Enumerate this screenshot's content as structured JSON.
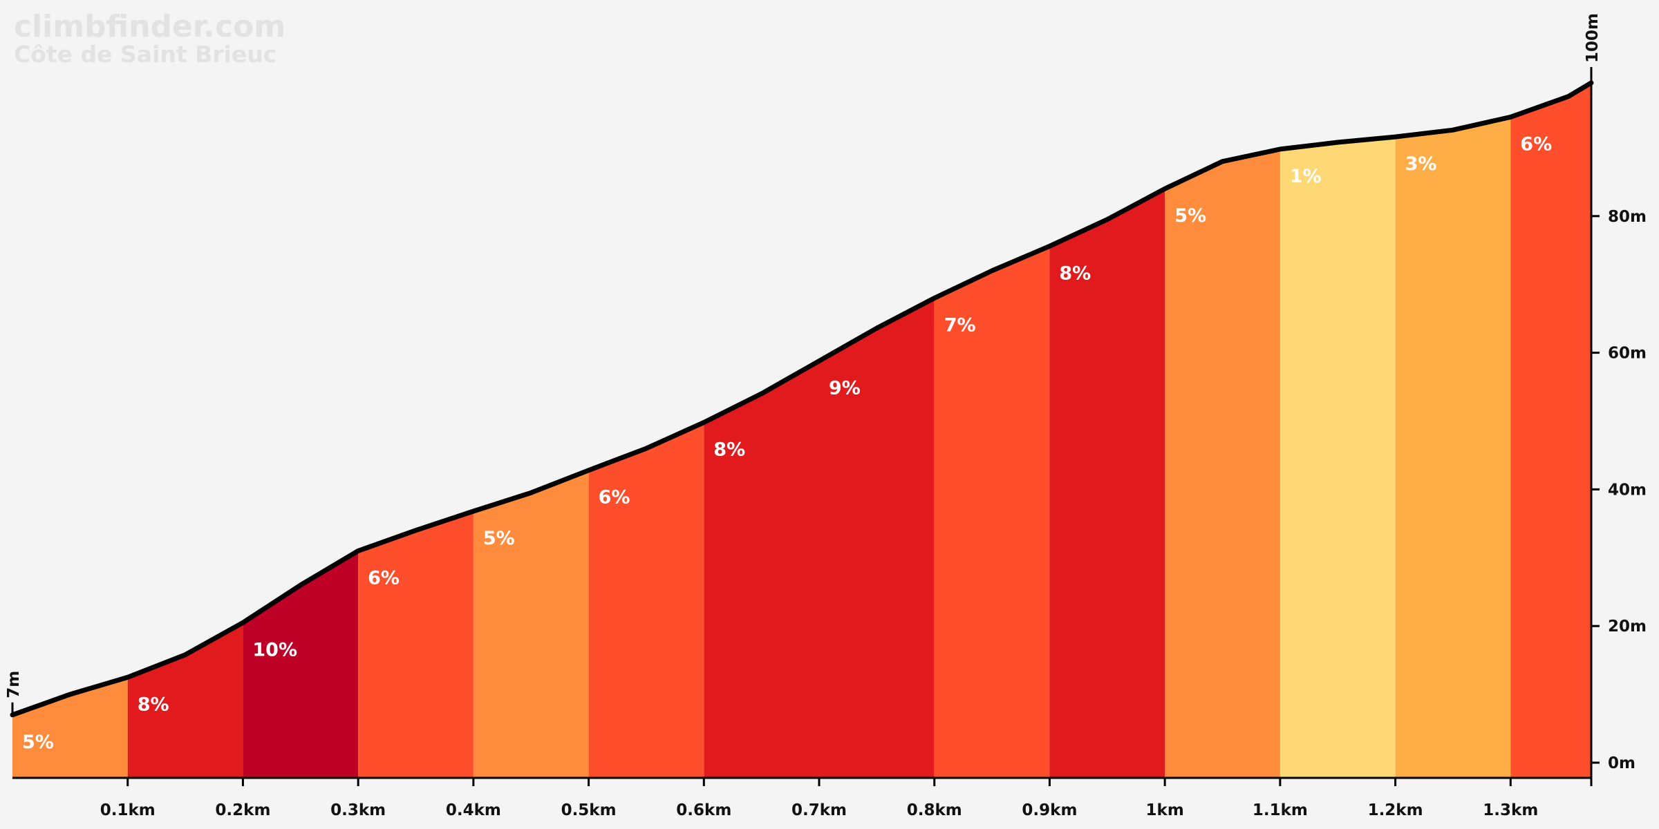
{
  "watermark": {
    "site": "climbfinder.com",
    "climb_name": "Côte de Saint Brieuc"
  },
  "chart_data": {
    "type": "area",
    "xlabel": "",
    "ylabel": "",
    "xlim": [
      0,
      1.37
    ],
    "ylim": [
      0,
      100
    ],
    "x_ticks": [
      {
        "x": 0.1,
        "label": "0.1km"
      },
      {
        "x": 0.2,
        "label": "0.2km"
      },
      {
        "x": 0.3,
        "label": "0.3km"
      },
      {
        "x": 0.4,
        "label": "0.4km"
      },
      {
        "x": 0.5,
        "label": "0.5km"
      },
      {
        "x": 0.6,
        "label": "0.6km"
      },
      {
        "x": 0.7,
        "label": "0.7km"
      },
      {
        "x": 0.8,
        "label": "0.8km"
      },
      {
        "x": 0.9,
        "label": "0.9km"
      },
      {
        "x": 1.0,
        "label": "1km"
      },
      {
        "x": 1.1,
        "label": "1.1km"
      },
      {
        "x": 1.2,
        "label": "1.2km"
      },
      {
        "x": 1.3,
        "label": "1.3km"
      }
    ],
    "y_ticks": [
      {
        "y": 0,
        "label": "0m"
      },
      {
        "y": 20,
        "label": "20m"
      },
      {
        "y": 40,
        "label": "40m"
      },
      {
        "y": 60,
        "label": "60m"
      },
      {
        "y": 80,
        "label": "80m"
      }
    ],
    "start_elevation": {
      "value": 7,
      "label": "7m"
    },
    "end_elevation": {
      "value": 100,
      "label": "100m"
    },
    "profile": [
      {
        "x": 0.0,
        "y": 7
      },
      {
        "x": 0.05,
        "y": 10
      },
      {
        "x": 0.1,
        "y": 12.5
      },
      {
        "x": 0.15,
        "y": 15.8
      },
      {
        "x": 0.2,
        "y": 20.5
      },
      {
        "x": 0.25,
        "y": 26
      },
      {
        "x": 0.3,
        "y": 31
      },
      {
        "x": 0.35,
        "y": 34
      },
      {
        "x": 0.4,
        "y": 36.8
      },
      {
        "x": 0.45,
        "y": 39.5
      },
      {
        "x": 0.5,
        "y": 42.8
      },
      {
        "x": 0.55,
        "y": 46
      },
      {
        "x": 0.6,
        "y": 49.8
      },
      {
        "x": 0.65,
        "y": 54
      },
      {
        "x": 0.7,
        "y": 58.8
      },
      {
        "x": 0.75,
        "y": 63.6
      },
      {
        "x": 0.8,
        "y": 68
      },
      {
        "x": 0.85,
        "y": 72
      },
      {
        "x": 0.9,
        "y": 75.6
      },
      {
        "x": 0.95,
        "y": 79.5
      },
      {
        "x": 1.0,
        "y": 84
      },
      {
        "x": 1.05,
        "y": 88
      },
      {
        "x": 1.1,
        "y": 89.8
      },
      {
        "x": 1.15,
        "y": 90.8
      },
      {
        "x": 1.2,
        "y": 91.6
      },
      {
        "x": 1.25,
        "y": 92.6
      },
      {
        "x": 1.3,
        "y": 94.5
      },
      {
        "x": 1.35,
        "y": 97.5
      },
      {
        "x": 1.37,
        "y": 99.5
      }
    ],
    "segments": [
      {
        "x0": 0.0,
        "x1": 0.1,
        "grade": 5,
        "label": "5%",
        "color": "#ff8c3c"
      },
      {
        "x0": 0.1,
        "x1": 0.2,
        "grade": 8,
        "label": "8%",
        "color": "#e11b1d"
      },
      {
        "x0": 0.2,
        "x1": 0.3,
        "grade": 10,
        "label": "10%",
        "color": "#be0026"
      },
      {
        "x0": 0.3,
        "x1": 0.4,
        "grade": 6,
        "label": "6%",
        "color": "#ff4e2b"
      },
      {
        "x0": 0.4,
        "x1": 0.5,
        "grade": 5,
        "label": "5%",
        "color": "#ff8c3c"
      },
      {
        "x0": 0.5,
        "x1": 0.6,
        "grade": 6,
        "label": "6%",
        "color": "#ff4e2b"
      },
      {
        "x0": 0.6,
        "x1": 0.7,
        "grade": 8,
        "label": "8%",
        "color": "#e11b1d"
      },
      {
        "x0": 0.7,
        "x1": 0.8,
        "grade": 9,
        "label": "9%",
        "color": "#e11b1d"
      },
      {
        "x0": 0.8,
        "x1": 0.9,
        "grade": 7,
        "label": "7%",
        "color": "#ff4e2b"
      },
      {
        "x0": 0.9,
        "x1": 1.0,
        "grade": 8,
        "label": "8%",
        "color": "#e11b1d"
      },
      {
        "x0": 1.0,
        "x1": 1.1,
        "grade": 5,
        "label": "5%",
        "color": "#ff8c3c"
      },
      {
        "x0": 1.1,
        "x1": 1.2,
        "grade": 1,
        "label": "1%",
        "color": "#ffd876"
      },
      {
        "x0": 1.2,
        "x1": 1.3,
        "grade": 3,
        "label": "3%",
        "color": "#ffad47"
      },
      {
        "x0": 1.3,
        "x1": 1.37,
        "grade": 6,
        "label": "6%",
        "color": "#ff4e2b"
      }
    ],
    "colors": {
      "line": "#000000",
      "background": "#f4f4f4",
      "watermark": "#e2e2e2"
    }
  }
}
